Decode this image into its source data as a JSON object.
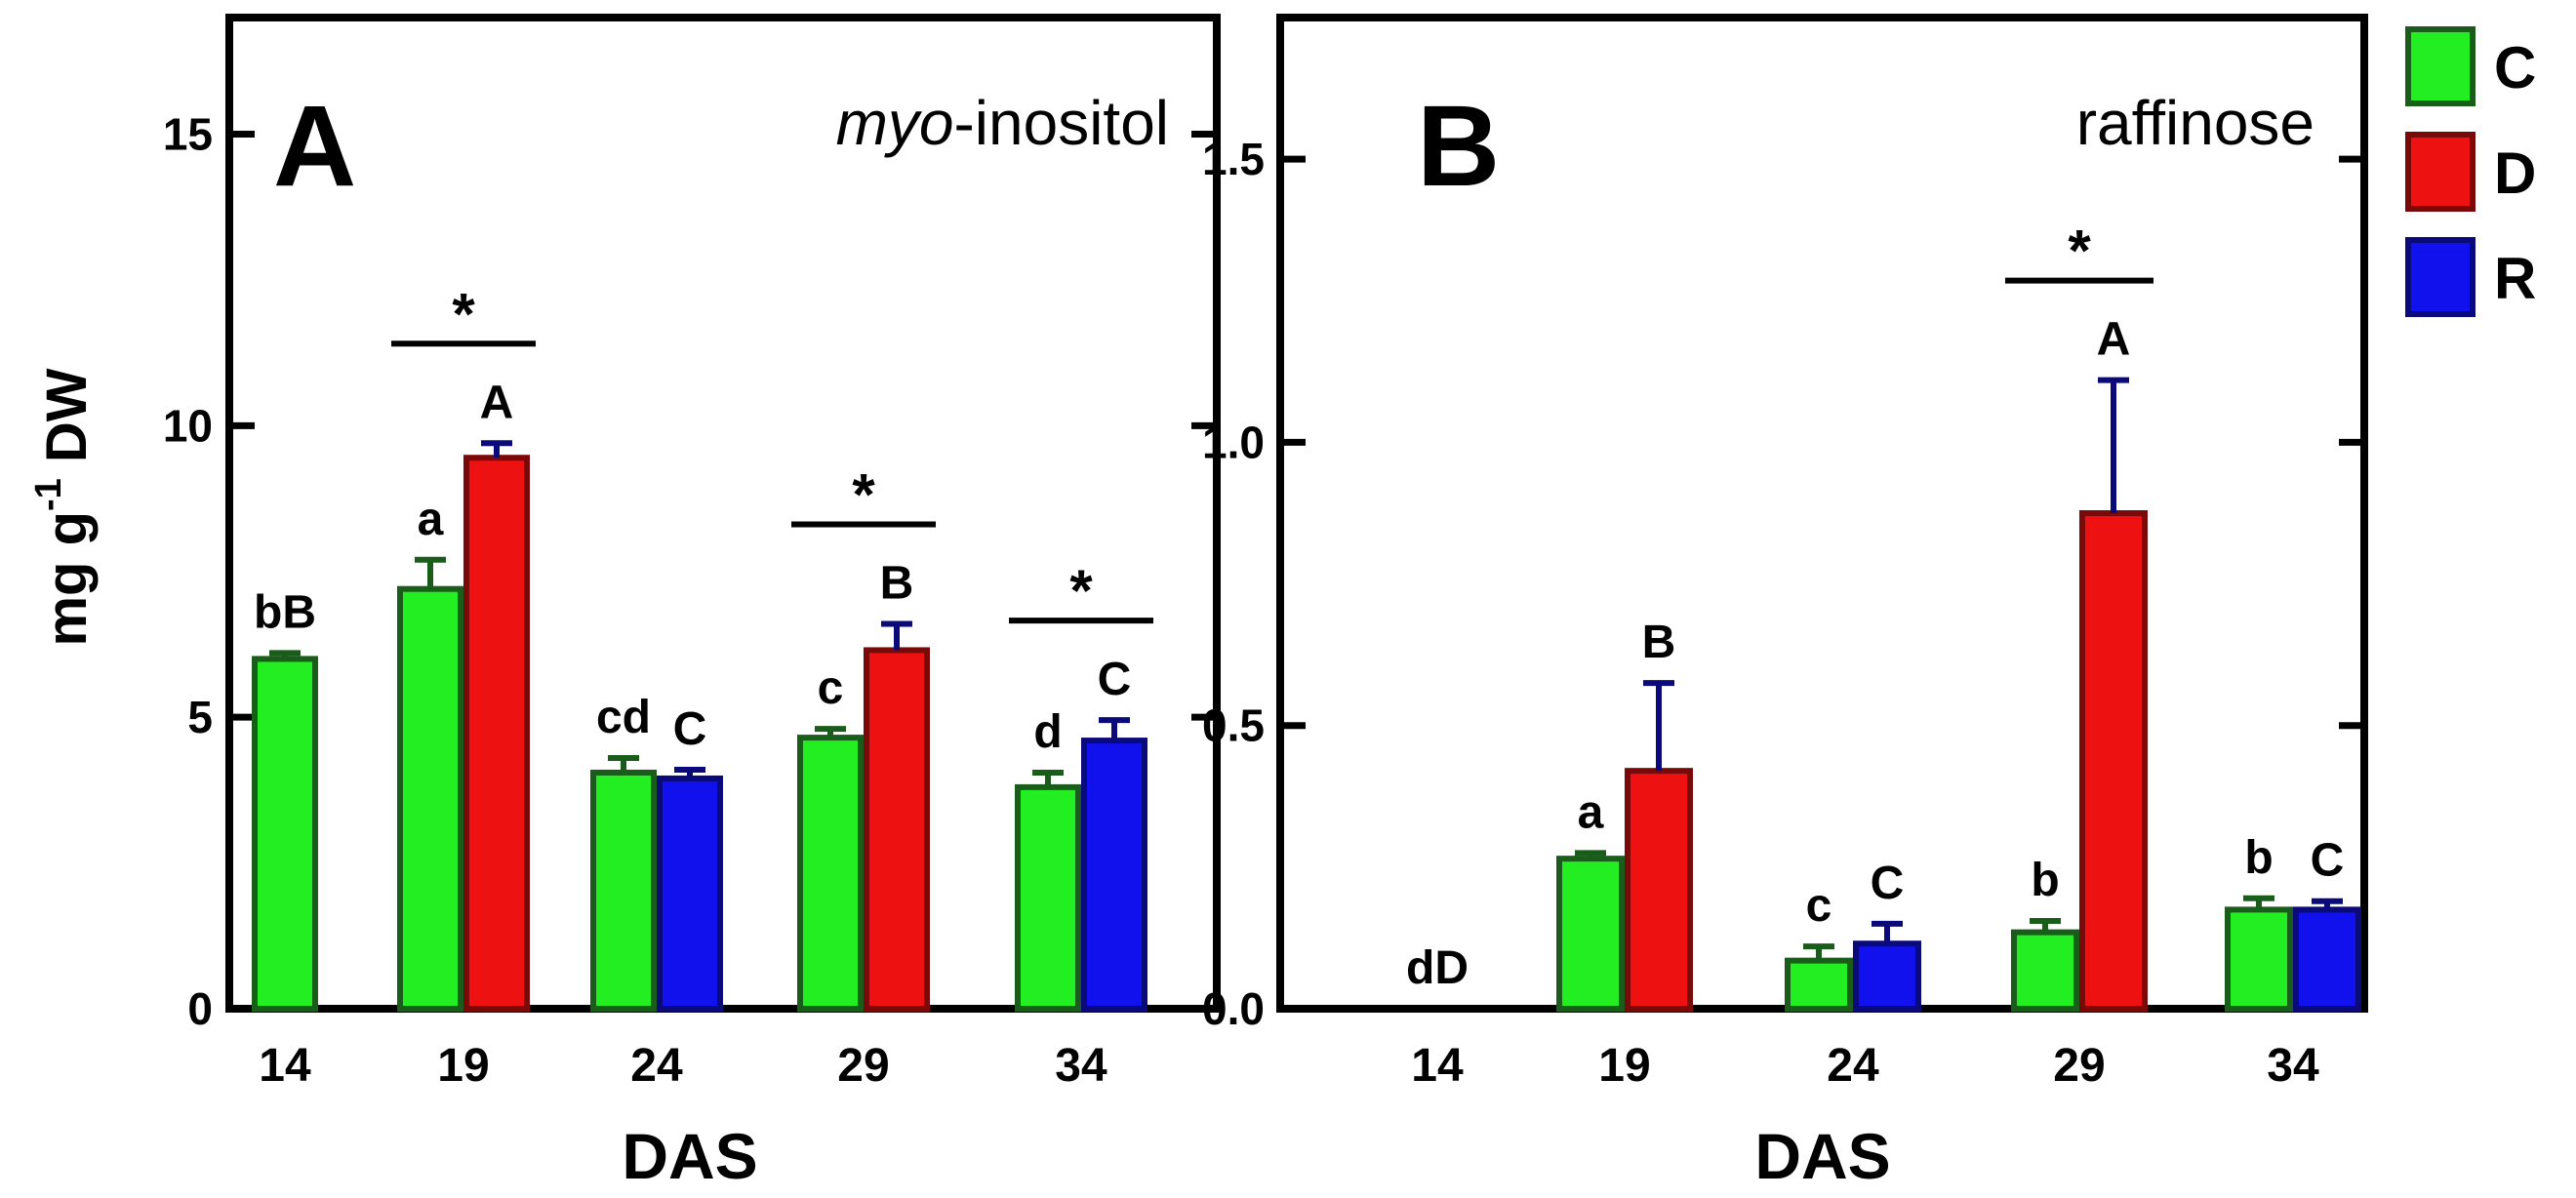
{
  "y_axis_label": {
    "base": "mg g",
    "superscript": "-1",
    "suffix": " DW"
  },
  "legend": [
    {
      "key": "C",
      "label": "C",
      "color": "#22ee22",
      "stroke": "#1a5c1a"
    },
    {
      "key": "D",
      "label": "D",
      "color": "#ee1111",
      "stroke": "#7a0a0a"
    },
    {
      "key": "R",
      "label": "R",
      "color": "#1111ee",
      "stroke": "#0a0a7a"
    }
  ],
  "chart_data": [
    {
      "type": "bar",
      "panel_letter": "A",
      "title": "myo-inositol",
      "title_parts": {
        "italic": "myo",
        "rest": "-inositol"
      },
      "xlabel": "DAS",
      "ylabel": "mg g-1 DW",
      "ylim": [
        0,
        17
      ],
      "yticks": [
        0,
        5,
        10,
        15
      ],
      "ytick_labels": [
        "0",
        "5",
        "10",
        "15"
      ],
      "categories": [
        "14",
        "19",
        "24",
        "29",
        "34"
      ],
      "series": [
        {
          "name": "C",
          "values": [
            6.0,
            7.2,
            4.05,
            4.65,
            3.8
          ],
          "errors": [
            0.1,
            0.5,
            0.25,
            0.15,
            0.25
          ],
          "letters": [
            "bB",
            "a",
            "cd",
            "c",
            "d"
          ]
        },
        {
          "name": "D",
          "values": [
            null,
            9.45,
            null,
            6.15,
            null
          ],
          "errors": [
            null,
            0.25,
            null,
            0.45,
            null
          ],
          "letters": [
            null,
            "A",
            null,
            "B",
            null
          ]
        },
        {
          "name": "R",
          "values": [
            null,
            null,
            3.95,
            null,
            4.6
          ],
          "errors": [
            null,
            null,
            0.15,
            null,
            0.35
          ],
          "letters": [
            null,
            null,
            "C",
            null,
            "C"
          ]
        }
      ],
      "significance": [
        {
          "category": "19",
          "label": "*"
        },
        {
          "category": "29",
          "label": "*"
        },
        {
          "category": "34",
          "label": "*"
        }
      ]
    },
    {
      "type": "bar",
      "panel_letter": "B",
      "title": "raffinose",
      "xlabel": "DAS",
      "ylabel": "mg g-1 DW",
      "ylim": [
        0,
        1.75
      ],
      "yticks": [
        0,
        0.5,
        1.0,
        1.5
      ],
      "ytick_labels": [
        "0.0",
        "0.5",
        "1.0",
        "1.5"
      ],
      "categories": [
        "14",
        "19",
        "24",
        "29",
        "34"
      ],
      "series": [
        {
          "name": "C",
          "values": [
            0,
            0.265,
            0.085,
            0.135,
            0.175
          ],
          "errors": [
            0,
            0.01,
            0.025,
            0.02,
            0.02
          ],
          "letters": [
            "dD",
            "a",
            "c",
            "b",
            "b"
          ]
        },
        {
          "name": "D",
          "values": [
            null,
            0.42,
            null,
            0.875,
            null
          ],
          "errors": [
            null,
            0.155,
            null,
            0.235,
            null
          ],
          "letters": [
            null,
            "B",
            null,
            "A",
            null
          ]
        },
        {
          "name": "R",
          "values": [
            null,
            null,
            0.115,
            null,
            0.175
          ],
          "errors": [
            null,
            null,
            0.035,
            null,
            0.015
          ],
          "letters": [
            null,
            null,
            "C",
            null,
            "C"
          ]
        }
      ],
      "significance": [
        {
          "category": "29",
          "label": "*"
        }
      ]
    }
  ]
}
